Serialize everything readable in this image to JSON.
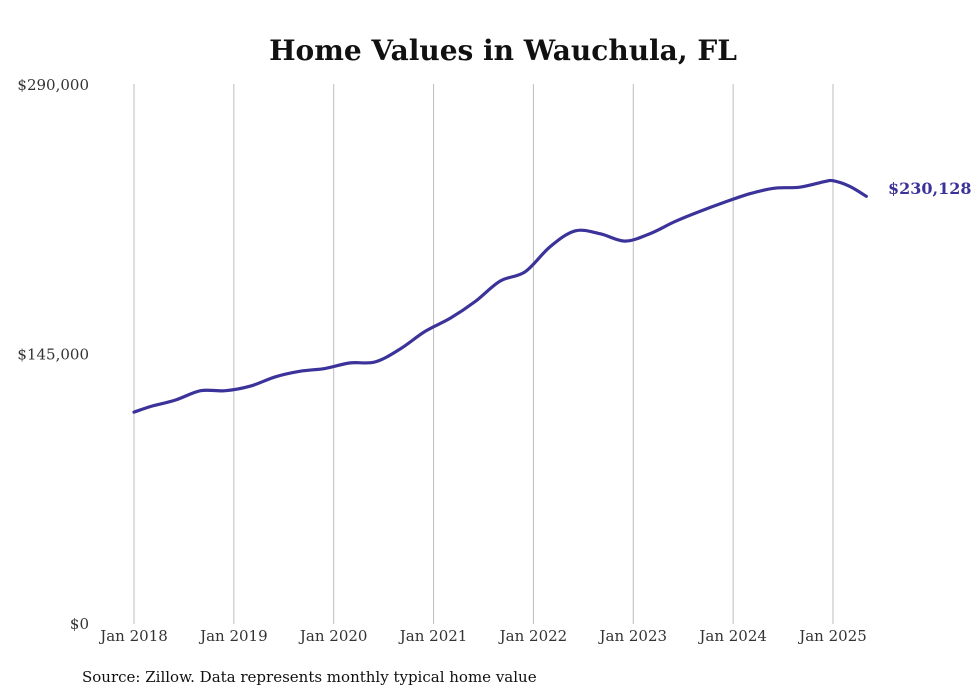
{
  "chart_data": {
    "type": "line",
    "title": "Home Values in Wauchula, FL",
    "xlabel": "",
    "ylabel": "",
    "ylim": [
      0,
      290000
    ],
    "y_ticks": [
      "$0",
      "$145,000",
      "$290,000"
    ],
    "y_tick_values": [
      0,
      145000,
      290000
    ],
    "x_ticks": [
      "Jan 2018",
      "Jan 2019",
      "Jan 2020",
      "Jan 2021",
      "Jan 2022",
      "Jan 2023",
      "Jan 2024",
      "Jan 2025"
    ],
    "x_tick_values": [
      "2018-01",
      "2019-01",
      "2020-01",
      "2021-01",
      "2022-01",
      "2023-01",
      "2024-01",
      "2025-01"
    ],
    "grid": "vertical",
    "end_label": "$230,128",
    "series": [
      {
        "color": "#3b3399",
        "x": [
          "2018-01",
          "2018-03",
          "2018-06",
          "2018-09",
          "2018-12",
          "2019-03",
          "2019-06",
          "2019-09",
          "2019-12",
          "2020-03",
          "2020-06",
          "2020-09",
          "2020-12",
          "2021-03",
          "2021-06",
          "2021-09",
          "2021-12",
          "2022-03",
          "2022-06",
          "2022-09",
          "2022-12",
          "2023-03",
          "2023-06",
          "2023-09",
          "2023-12",
          "2024-03",
          "2024-06",
          "2024-09",
          "2024-12",
          "2025-01",
          "2025-03",
          "2025-05"
        ],
        "values": [
          114000,
          117000,
          120500,
          125500,
          125500,
          128000,
          133000,
          136000,
          137500,
          140500,
          141000,
          148000,
          157500,
          164500,
          173500,
          184500,
          189500,
          203000,
          211500,
          210000,
          206000,
          210000,
          216500,
          222000,
          227000,
          231500,
          234500,
          235000,
          238000,
          238500,
          235500,
          230128
        ]
      }
    ]
  },
  "source_note": "Source: Zillow. Data represents monthly typical home value"
}
